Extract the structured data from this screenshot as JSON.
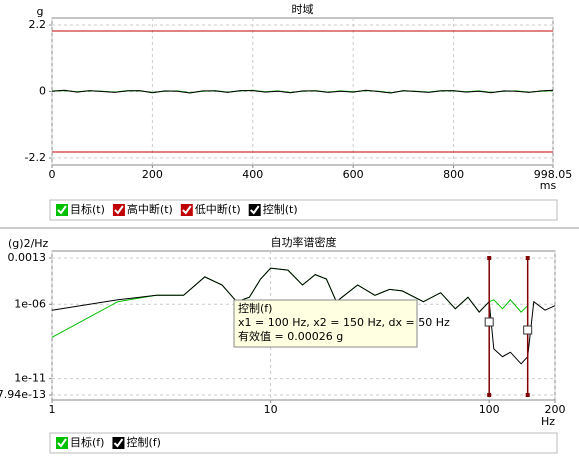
{
  "chart_data": [
    {
      "type": "line",
      "title": "时域",
      "y_label": "g",
      "x_label": "ms",
      "xlim": [
        0,
        998.05
      ],
      "xticks": [
        0,
        200,
        400,
        600,
        800,
        998.05
      ],
      "ylim": [
        -2.2,
        2.2
      ],
      "yticks": [
        2.2,
        0,
        -2.2
      ],
      "grid": true,
      "series": [
        {
          "name": "目标(t)",
          "color": "#00c000",
          "x": [
            0,
            25,
            50,
            75,
            100,
            125,
            150,
            175,
            200,
            225,
            250,
            275,
            300,
            325,
            350,
            375,
            400,
            425,
            450,
            475,
            500,
            525,
            550,
            575,
            600,
            625,
            650,
            675,
            700,
            725,
            750,
            775,
            800,
            825,
            850,
            875,
            900,
            925,
            950,
            975,
            998.05
          ],
          "values": [
            0.02,
            0.03,
            -0.01,
            0.02,
            0.01,
            -0.02,
            0.03,
            0.02,
            -0.03,
            0.01,
            0.02,
            -0.04,
            0.01,
            0.03,
            -0.02,
            0.02,
            0.04,
            -0.01,
            0.02,
            -0.03,
            0.01,
            0.03,
            -0.02,
            0.02,
            -0.01,
            0.03,
            0.01,
            -0.04,
            0.02,
            0.01,
            -0.02,
            0.03,
            0.02,
            -0.01,
            0.02,
            -0.03,
            0.01,
            0.02,
            -0.02,
            0.01,
            0.03
          ]
        },
        {
          "name": "高中断(t)",
          "color": "#c00000",
          "x": [
            0,
            998.05
          ],
          "values": [
            2,
            2
          ]
        },
        {
          "name": "低中断(t)",
          "color": "#c00000",
          "x": [
            0,
            998.05
          ],
          "values": [
            -2,
            -2
          ]
        },
        {
          "name": "控制(t)",
          "color": "#000000",
          "x": [
            0,
            25,
            50,
            75,
            100,
            125,
            150,
            175,
            200,
            225,
            250,
            275,
            300,
            325,
            350,
            375,
            400,
            425,
            450,
            475,
            500,
            525,
            550,
            575,
            600,
            625,
            650,
            675,
            700,
            725,
            750,
            775,
            800,
            825,
            850,
            875,
            900,
            925,
            950,
            975,
            998.05
          ],
          "values": [
            0.01,
            0.04,
            -0.02,
            0.03,
            0,
            -0.03,
            0.02,
            0.03,
            -0.04,
            0.02,
            0.01,
            -0.05,
            0.02,
            0.02,
            -0.03,
            0.03,
            0.03,
            -0.02,
            0.01,
            -0.04,
            0.02,
            0.02,
            -0.03,
            0.01,
            -0.02,
            0.04,
            0,
            -0.05,
            0.03,
            0,
            -0.03,
            0.02,
            0.03,
            -0.02,
            0.01,
            -0.04,
            0.02,
            0.01,
            -0.03,
            0.02,
            0.04
          ]
        }
      ]
    },
    {
      "type": "line",
      "title": "自功率谱密度",
      "y_label": "(g)2/Hz",
      "x_label": "Hz",
      "x_log": true,
      "y_log": true,
      "xlim": [
        1,
        200
      ],
      "xticks": [
        1,
        10,
        100,
        200
      ],
      "ylim": [
        7.94e-13,
        0.0013
      ],
      "yticks": [
        0.0013,
        {
          "value": 1e-06,
          "label": "1e-06"
        },
        {
          "value": 1e-11,
          "label": "1e-11"
        },
        {
          "value": 7.94e-13,
          "label": "7.94e-13"
        }
      ],
      "grid": true,
      "cursor_x": [
        100,
        150
      ],
      "cursor_color": "#800000",
      "annotation": [
        "控制(f)",
        "x1 = 100 Hz, x2 = 150 Hz, dx = 50 Hz",
        "有效值 = 0.00026 g"
      ],
      "series": [
        {
          "name": "目标(f)",
          "color": "#00c000",
          "x": [
            1,
            2,
            3,
            4,
            5,
            6,
            7,
            8,
            9,
            10,
            12,
            14,
            16,
            18,
            20,
            25,
            30,
            35,
            40,
            50,
            60,
            70,
            80,
            90,
            100,
            105,
            115,
            125,
            140,
            150
          ],
          "values": [
            6e-09,
            1.5e-06,
            4e-06,
            4e-06,
            7e-05,
            2e-05,
            1.5e-06,
            3e-06,
            5e-05,
            0.00027,
            0.0002,
            2e-05,
            0.0001,
            5e-05,
            1.5e-06,
            2e-05,
            4e-06,
            1e-05,
            8e-06,
            1.5e-06,
            6e-06,
            5e-07,
            3e-06,
            3e-07,
            1.5e-06,
            2e-06,
            5e-07,
            2e-06,
            3e-07,
            8e-07
          ]
        },
        {
          "name": "控制(f)",
          "color": "#000000",
          "x": [
            1,
            2,
            3,
            4,
            5,
            6,
            7,
            8,
            9,
            10,
            12,
            14,
            16,
            18,
            20,
            25,
            30,
            35,
            40,
            50,
            60,
            70,
            80,
            90,
            100,
            105,
            115,
            125,
            140,
            150,
            160,
            180,
            200
          ],
          "values": [
            4e-07,
            2e-06,
            4e-06,
            4e-06,
            7e-05,
            2e-05,
            1.5e-06,
            3e-06,
            5e-05,
            0.00027,
            0.0002,
            2e-05,
            0.0001,
            5e-05,
            1.5e-06,
            2e-05,
            4e-06,
            1e-05,
            8e-06,
            1.5e-06,
            6e-06,
            5e-07,
            3e-06,
            3e-07,
            1.5e-06,
            1e-09,
            3e-10,
            6e-10,
            1e-10,
            3e-10,
            1.5e-06,
            4e-07,
            8e-07
          ]
        }
      ]
    }
  ]
}
